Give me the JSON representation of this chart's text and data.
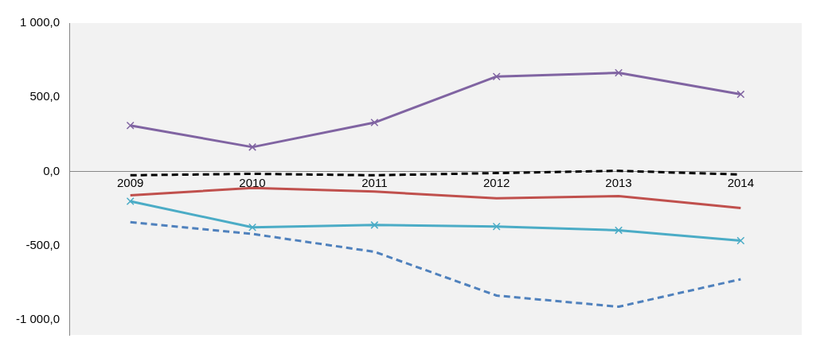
{
  "chart_data": {
    "type": "line",
    "categories": [
      "2009",
      "2010",
      "2011",
      "2012",
      "2013",
      "2014"
    ],
    "ylim": [
      -1100,
      1000
    ],
    "yticks": [
      {
        "value": 1000,
        "label": "1 000,0"
      },
      {
        "value": 500,
        "label": "500,0"
      },
      {
        "value": 0,
        "label": "0,0"
      },
      {
        "value": -500,
        "label": "-500,0"
      },
      {
        "value": -1000,
        "label": "-1 000,0"
      }
    ],
    "series": [
      {
        "color": "#8064a2",
        "marker": "cross",
        "line_style": "solid",
        "values": [
          310,
          165,
          330,
          640,
          665,
          520
        ]
      },
      {
        "color": "#000000",
        "marker": "none",
        "line_style": "dashed",
        "values": [
          -25,
          -15,
          -25,
          -10,
          5,
          -20
        ]
      },
      {
        "color": "#c0504d",
        "marker": "none",
        "line_style": "solid",
        "values": [
          -160,
          -110,
          -135,
          -180,
          -165,
          -245
        ]
      },
      {
        "color": "#4bacc6",
        "marker": "cross",
        "line_style": "solid",
        "values": [
          -200,
          -375,
          -360,
          -370,
          -395,
          -465
        ]
      },
      {
        "color": "#4f81bd",
        "marker": "none",
        "line_style": "dashed",
        "values": [
          -340,
          -420,
          -540,
          -835,
          -910,
          -725
        ]
      }
    ]
  }
}
